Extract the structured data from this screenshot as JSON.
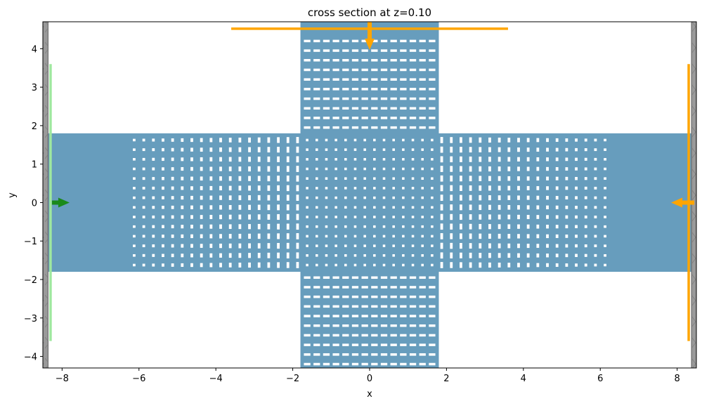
{
  "chart_data": {
    "type": "diagram",
    "title": "cross section at z=0.10",
    "xlabel": "x",
    "ylabel": "y",
    "xlim": [
      -8.5,
      8.5
    ],
    "ylim": [
      -4.3,
      4.7
    ],
    "xticks": [
      -8,
      -6,
      -4,
      -2,
      0,
      2,
      4,
      6,
      8
    ],
    "yticks": [
      -4,
      -3,
      -2,
      -1,
      0,
      1,
      2,
      3,
      4
    ],
    "grid": false,
    "colors": {
      "structure": "#679dbd",
      "hole": "#ffffff",
      "source": "#9fe89f",
      "source_arrow": "#1a8a1a",
      "monitor": "#ffa500",
      "pml": "#999999"
    },
    "structures": {
      "horizontal_waveguide": {
        "x": [
          -8.5,
          8.5
        ],
        "y": [
          -1.8,
          1.8
        ]
      },
      "vertical_waveguide": {
        "x": [
          -1.8,
          1.8
        ],
        "y": [
          -4.3,
          4.7
        ]
      },
      "hole_pitch": 0.25,
      "horizontal_arm_hole_columns": [
        -6.125,
        6.125
      ],
      "hole_rows": [
        -1.625,
        1.625
      ],
      "vertical_arm_hole_columns": [
        -1.625,
        1.625
      ],
      "vertical_arm_hole_rows_abs": [
        1.95,
        4.2
      ]
    },
    "source": {
      "x": -8.3,
      "y": [
        -3.6,
        3.6
      ],
      "direction": "+x"
    },
    "monitors": [
      {
        "orientation": "vertical",
        "x": 8.3,
        "y": [
          -3.6,
          3.6
        ],
        "direction": "-x"
      },
      {
        "orientation": "horizontal",
        "y": 4.52,
        "x": [
          -3.6,
          3.6
        ],
        "direction": "-y"
      }
    ],
    "pml": {
      "left": [
        -8.5,
        -8.38
      ],
      "right": [
        8.38,
        8.5
      ]
    }
  }
}
